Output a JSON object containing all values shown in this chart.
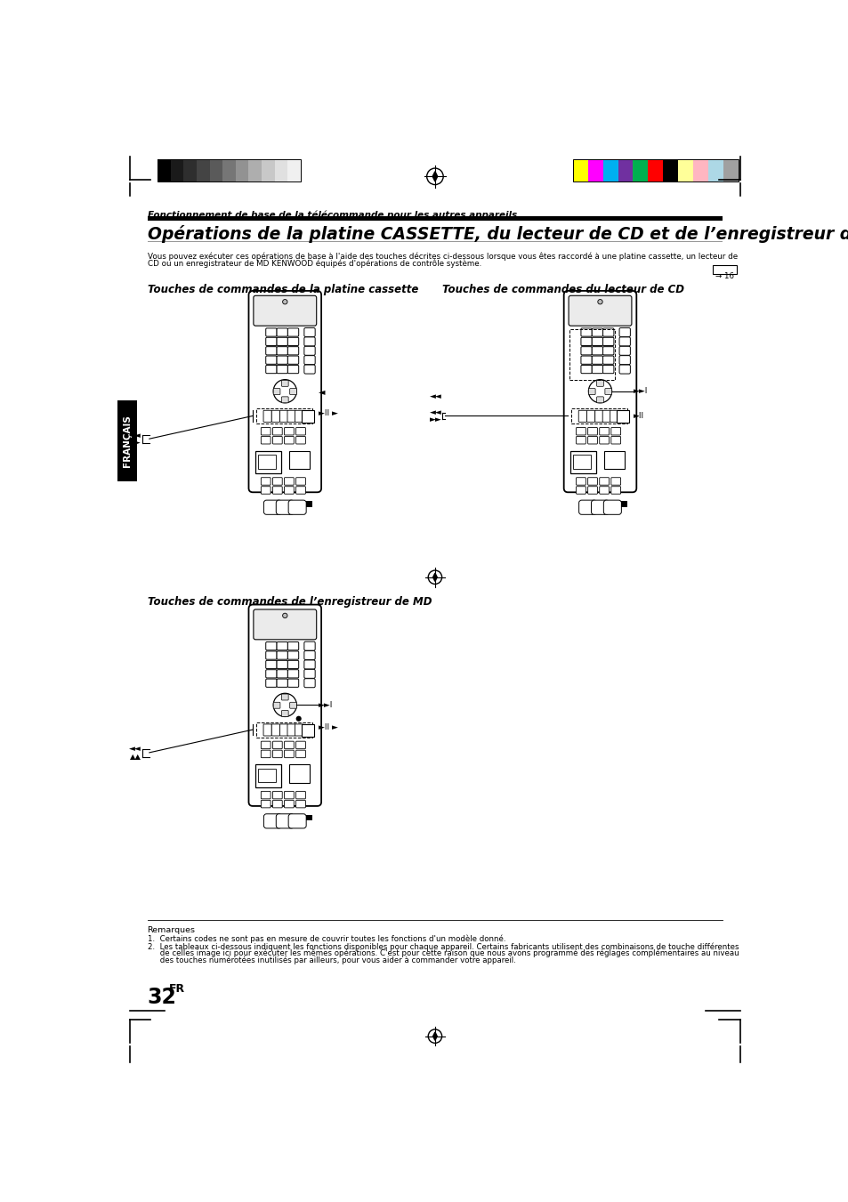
{
  "page_bg": "#ffffff",
  "top_italic_text": "Fonctionnement de base de la télécommande pour les autres appareils",
  "main_title": "Opérations de la platine CASSETTE, du lecteur de CD et de l’enregistreur de MD",
  "body_line1": "Vous pouvez exécuter ces opérations de base à l'aide des touches décrites ci-dessous lorsque vous êtes raccordé à une platine cassette, un lecteur de",
  "body_line2": "CD ou un enregistrateur de MD KENWOOD équipés d'opérations de contrôle système.",
  "page_ref": "→ 16",
  "section1_title": "Touches de commandes de la platine cassette",
  "section2_title": "Touches de commandes du lecteur de CD",
  "section3_title": "Touches de commandes de l’enregistreur de MD",
  "francais_label": "FRANÇAIS",
  "page_number": "32",
  "page_suffix": "FR",
  "remarks_title": "Remarques",
  "remark1": "1.  Certains codes ne sont pas en mesure de couvrir toutes les fonctions d'un modèle donné.",
  "remark2a": "2.  Les tableaux ci-dessous indiquent les fonctions disponibles pour chaque appareil. Certains fabricants utilisent des combinaisons de touche différentes",
  "remark2b": "     de celles image ici pour exécuter les mêmes opérations. C'est pour cette raison que nous avons programmé des réglages complémentaires au niveau",
  "remark2c": "     des touches numérotées inutilisés par ailleurs, pour vous aider à commander votre appareil.",
  "grayscale_colors": [
    "#000000",
    "#1a1a1a",
    "#2e2e2e",
    "#444444",
    "#5a5a5a",
    "#767676",
    "#929292",
    "#aeaeae",
    "#c8c8c8",
    "#e0e0e0",
    "#f0f0f0"
  ],
  "color_swatches": [
    "#ffff00",
    "#ff00ff",
    "#00b0f0",
    "#7030a0",
    "#00b050",
    "#ff0000",
    "#000000",
    "#ffff99",
    "#ffb6c1",
    "#add8e6",
    "#a0a0a0"
  ]
}
